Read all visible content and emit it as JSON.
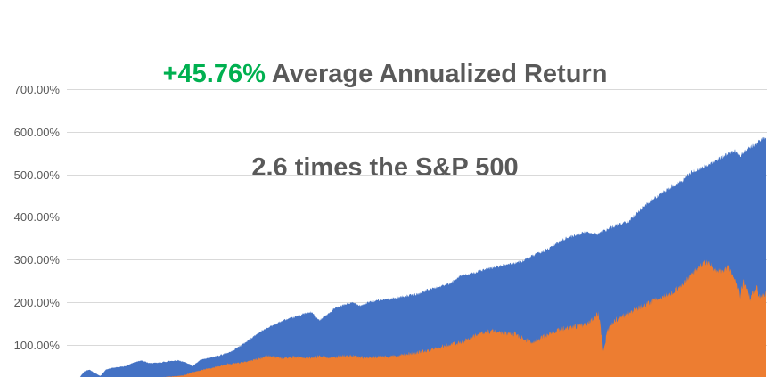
{
  "title": {
    "highlight": "+45.76%",
    "line1_rest": " Average Annualized Return",
    "line2": "2.6 times the S&P 500",
    "highlight_color": "#00B050",
    "text_color": "#595959"
  },
  "colors": {
    "background": "#FFFFFF",
    "gridline": "#D9D9D9",
    "chart_border": "#D9D9D9",
    "axis_text": "#595959",
    "series_blue": "#4472C4",
    "series_orange": "#ED7D31"
  },
  "chart_data": {
    "type": "area",
    "title": "+45.76% Average Annualized Return / 2.6 times the S&P 500",
    "legend": "none",
    "grid": true,
    "x_axis": {
      "labels_visible": false,
      "note": "time axis cropped at bottom of screenshot"
    },
    "y_axis": {
      "unit": "%",
      "ticks": [
        "700.00%",
        "600.00%",
        "500.00%",
        "400.00%",
        "300.00%",
        "200.00%",
        "100.00%"
      ],
      "tick_values": [
        700,
        600,
        500,
        400,
        300,
        200,
        100
      ],
      "tick_step": 100,
      "visible_range_pct": [
        25,
        725
      ]
    },
    "series": [
      {
        "name": "blue-cumulative-return",
        "color": "#4472C4",
        "end_value_pct": 585,
        "points_pct": [
          [
            0,
            5
          ],
          [
            0.019,
            25
          ],
          [
            0.025,
            38
          ],
          [
            0.032,
            42
          ],
          [
            0.04,
            34
          ],
          [
            0.048,
            27
          ],
          [
            0.056,
            42
          ],
          [
            0.064,
            46
          ],
          [
            0.083,
            50
          ],
          [
            0.096,
            59
          ],
          [
            0.106,
            64
          ],
          [
            0.118,
            57
          ],
          [
            0.131,
            58
          ],
          [
            0.146,
            62
          ],
          [
            0.159,
            64
          ],
          [
            0.172,
            58
          ],
          [
            0.18,
            50
          ],
          [
            0.191,
            65
          ],
          [
            0.208,
            71
          ],
          [
            0.223,
            78
          ],
          [
            0.236,
            85
          ],
          [
            0.246,
            96
          ],
          [
            0.259,
            110
          ],
          [
            0.271,
            125
          ],
          [
            0.284,
            138
          ],
          [
            0.297,
            148
          ],
          [
            0.31,
            158
          ],
          [
            0.325,
            165
          ],
          [
            0.34,
            174
          ],
          [
            0.35,
            177
          ],
          [
            0.36,
            158
          ],
          [
            0.373,
            172
          ],
          [
            0.382,
            185
          ],
          [
            0.399,
            196
          ],
          [
            0.409,
            199
          ],
          [
            0.42,
            193
          ],
          [
            0.433,
            201
          ],
          [
            0.446,
            205
          ],
          [
            0.465,
            209
          ],
          [
            0.484,
            215
          ],
          [
            0.503,
            220
          ],
          [
            0.516,
            230
          ],
          [
            0.535,
            238
          ],
          [
            0.548,
            244
          ],
          [
            0.561,
            262
          ],
          [
            0.577,
            267
          ],
          [
            0.592,
            275
          ],
          [
            0.611,
            282
          ],
          [
            0.631,
            290
          ],
          [
            0.65,
            296
          ],
          [
            0.669,
            312
          ],
          [
            0.688,
            325
          ],
          [
            0.709,
            348
          ],
          [
            0.726,
            358
          ],
          [
            0.743,
            366
          ],
          [
            0.758,
            361
          ],
          [
            0.771,
            370
          ],
          [
            0.783,
            380
          ],
          [
            0.803,
            391
          ],
          [
            0.822,
            422
          ],
          [
            0.841,
            446
          ],
          [
            0.86,
            467
          ],
          [
            0.879,
            485
          ],
          [
            0.892,
            506
          ],
          [
            0.904,
            513
          ],
          [
            0.924,
            530
          ],
          [
            0.939,
            544
          ],
          [
            0.955,
            556
          ],
          [
            0.962,
            545
          ],
          [
            0.972,
            560
          ],
          [
            0.985,
            572
          ],
          [
            0.995,
            586
          ],
          [
            1,
            582
          ]
        ]
      },
      {
        "name": "orange-cumulative-return",
        "color": "#ED7D31",
        "end_value_pct": 222,
        "points_pct": [
          [
            0,
            2
          ],
          [
            0.025,
            8
          ],
          [
            0.057,
            14
          ],
          [
            0.096,
            20
          ],
          [
            0.134,
            24
          ],
          [
            0.166,
            28
          ],
          [
            0.178,
            35
          ],
          [
            0.195,
            42
          ],
          [
            0.21,
            47
          ],
          [
            0.229,
            55
          ],
          [
            0.248,
            58
          ],
          [
            0.268,
            65
          ],
          [
            0.287,
            74
          ],
          [
            0.306,
            70
          ],
          [
            0.325,
            72
          ],
          [
            0.344,
            70
          ],
          [
            0.363,
            73
          ],
          [
            0.382,
            71
          ],
          [
            0.401,
            76
          ],
          [
            0.42,
            71
          ],
          [
            0.439,
            72
          ],
          [
            0.465,
            73
          ],
          [
            0.49,
            79
          ],
          [
            0.516,
            87
          ],
          [
            0.541,
            98
          ],
          [
            0.567,
            108
          ],
          [
            0.592,
            129
          ],
          [
            0.608,
            133
          ],
          [
            0.624,
            128
          ],
          [
            0.641,
            126
          ],
          [
            0.656,
            112
          ],
          [
            0.666,
            105
          ],
          [
            0.681,
            119
          ],
          [
            0.701,
            135
          ],
          [
            0.726,
            143
          ],
          [
            0.744,
            148
          ],
          [
            0.755,
            168
          ],
          [
            0.76,
            174
          ],
          [
            0.767,
            88
          ],
          [
            0.773,
            135
          ],
          [
            0.783,
            158
          ],
          [
            0.803,
            175
          ],
          [
            0.822,
            192
          ],
          [
            0.841,
            205
          ],
          [
            0.86,
            218
          ],
          [
            0.879,
            240
          ],
          [
            0.895,
            270
          ],
          [
            0.908,
            290
          ],
          [
            0.917,
            296
          ],
          [
            0.926,
            278
          ],
          [
            0.936,
            272
          ],
          [
            0.946,
            282
          ],
          [
            0.955,
            255
          ],
          [
            0.962,
            215
          ],
          [
            0.968,
            248
          ],
          [
            0.977,
            205
          ],
          [
            0.985,
            240
          ],
          [
            0.991,
            210
          ],
          [
            1,
            222
          ]
        ]
      }
    ],
    "render": {
      "samples": 1600,
      "seed": 42,
      "noise_amp": {
        "blue-cumulative-return": [
          1.2,
          5
        ],
        "orange-cumulative-return": [
          1.2,
          9
        ]
      }
    }
  }
}
